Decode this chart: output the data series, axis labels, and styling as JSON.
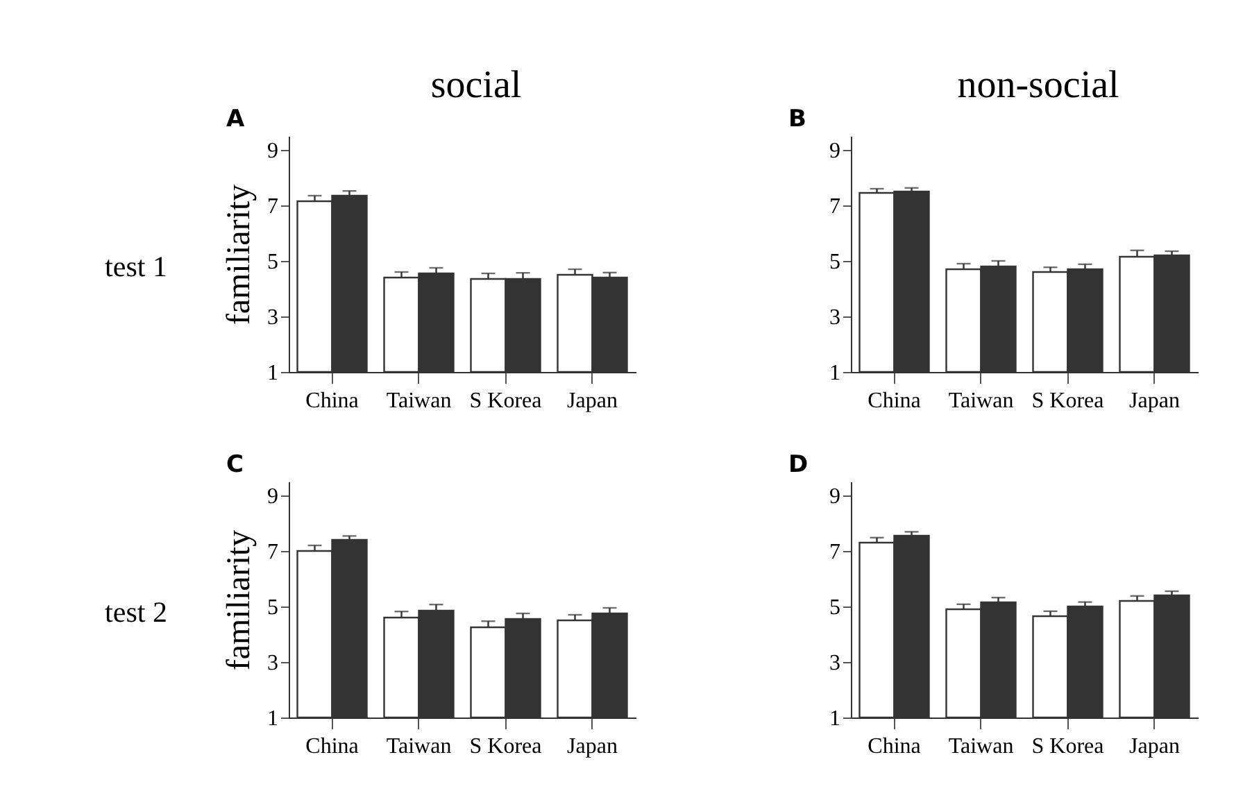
{
  "chart_data": [
    {
      "type": "bar",
      "title": "A",
      "subtitle": "social",
      "ylabel": "familiarity",
      "annotations": [
        "test 1"
      ],
      "categories": [
        "China",
        "Taiwan",
        "S Korea",
        "Japan"
      ],
      "ylim": [
        1,
        9.5
      ],
      "yticks": [
        1,
        3,
        5,
        7,
        9
      ],
      "grid": false,
      "legend": false,
      "series": [
        {
          "color": "#ffffff",
          "values": [
            7.15,
            4.4,
            4.35,
            4.5
          ],
          "errors": [
            0.2,
            0.2,
            0.2,
            0.2
          ]
        },
        {
          "color": "#333333",
          "values": [
            7.35,
            4.55,
            4.35,
            4.4
          ],
          "errors": [
            0.17,
            0.2,
            0.22,
            0.18
          ]
        }
      ]
    },
    {
      "type": "bar",
      "title": "B",
      "subtitle": "non-social",
      "categories": [
        "China",
        "Taiwan",
        "S Korea",
        "Japan"
      ],
      "ylim": [
        1,
        9.5
      ],
      "yticks": [
        1,
        3,
        5,
        7,
        9
      ],
      "grid": false,
      "legend": false,
      "series": [
        {
          "color": "#ffffff",
          "values": [
            7.45,
            4.7,
            4.6,
            5.15
          ],
          "errors": [
            0.15,
            0.2,
            0.17,
            0.23
          ]
        },
        {
          "color": "#333333",
          "values": [
            7.5,
            4.8,
            4.7,
            5.2
          ],
          "errors": [
            0.13,
            0.2,
            0.18,
            0.15
          ]
        }
      ]
    },
    {
      "type": "bar",
      "title": "C",
      "ylabel": "familiarity",
      "annotations": [
        "test 2"
      ],
      "categories": [
        "China",
        "Taiwan",
        "S Korea",
        "Japan"
      ],
      "ylim": [
        1,
        9.5
      ],
      "yticks": [
        1,
        3,
        5,
        7,
        9
      ],
      "grid": false,
      "legend": false,
      "series": [
        {
          "color": "#ffffff",
          "values": [
            7.0,
            4.6,
            4.25,
            4.5
          ],
          "errors": [
            0.2,
            0.22,
            0.22,
            0.2
          ]
        },
        {
          "color": "#333333",
          "values": [
            7.4,
            4.85,
            4.55,
            4.75
          ],
          "errors": [
            0.14,
            0.22,
            0.2,
            0.2
          ]
        }
      ]
    },
    {
      "type": "bar",
      "title": "D",
      "categories": [
        "China",
        "Taiwan",
        "S Korea",
        "Japan"
      ],
      "ylim": [
        1,
        9.5
      ],
      "yticks": [
        1,
        3,
        5,
        7,
        9
      ],
      "grid": false,
      "legend": false,
      "series": [
        {
          "color": "#ffffff",
          "values": [
            7.3,
            4.9,
            4.65,
            5.2
          ],
          "errors": [
            0.18,
            0.18,
            0.18,
            0.18
          ]
        },
        {
          "color": "#333333",
          "values": [
            7.55,
            5.15,
            5.0,
            5.4
          ],
          "errors": [
            0.14,
            0.17,
            0.16,
            0.15
          ]
        }
      ]
    }
  ]
}
